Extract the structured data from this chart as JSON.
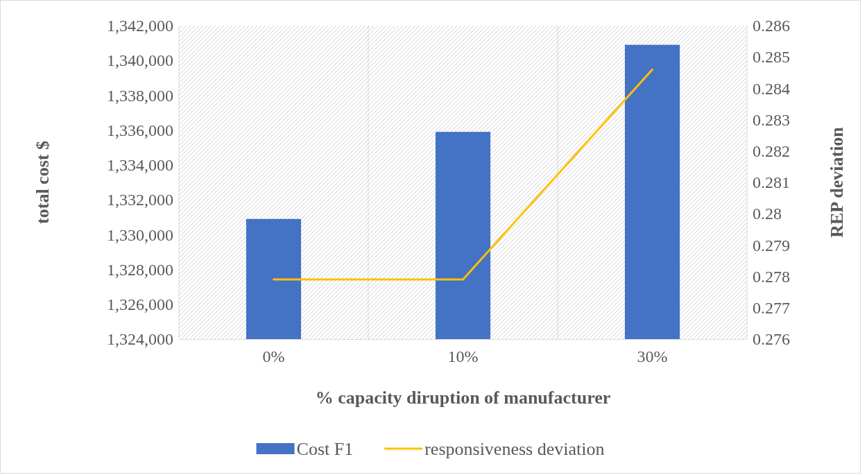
{
  "chart_data": {
    "type": "bar",
    "xlabel": "% capacity diruption of manufacturer",
    "ylabel": "total cost $",
    "y2label": "REP deviation",
    "categories": [
      "0%",
      "10%",
      "30%"
    ],
    "series": [
      {
        "name": "Cost F1",
        "color": "#4472c4",
        "values": [
          1330900,
          1335900,
          1340900
        ]
      },
      {
        "name": "responsiveness deviation",
        "type": "line",
        "axis": "y2",
        "color": "#ffc000",
        "values": [
          0.2779,
          0.2779,
          0.2846
        ]
      }
    ],
    "ylim": [
      1324000,
      1342000
    ],
    "yticks": [
      {
        "value": 1324000,
        "label": "1,324,000"
      },
      {
        "value": 1326000,
        "label": "1,326,000"
      },
      {
        "value": 1328000,
        "label": "1,328,000"
      },
      {
        "value": 1330000,
        "label": "1,330,000"
      },
      {
        "value": 1332000,
        "label": "1,332,000"
      },
      {
        "value": 1334000,
        "label": "1,334,000"
      },
      {
        "value": 1336000,
        "label": "1,336,000"
      },
      {
        "value": 1338000,
        "label": "1,338,000"
      },
      {
        "value": 1340000,
        "label": "1,340,000"
      },
      {
        "value": 1342000,
        "label": "1,342,000"
      }
    ],
    "y2lim": [
      0.276,
      0.286
    ],
    "y2ticks": [
      0.276,
      0.277,
      0.278,
      0.279,
      {
        "value": 0.28,
        "label": "0.28"
      },
      0.281,
      0.282,
      0.283,
      0.284,
      0.285,
      0.286
    ],
    "grid": "x",
    "legend": "bottom",
    "marker": "none"
  }
}
